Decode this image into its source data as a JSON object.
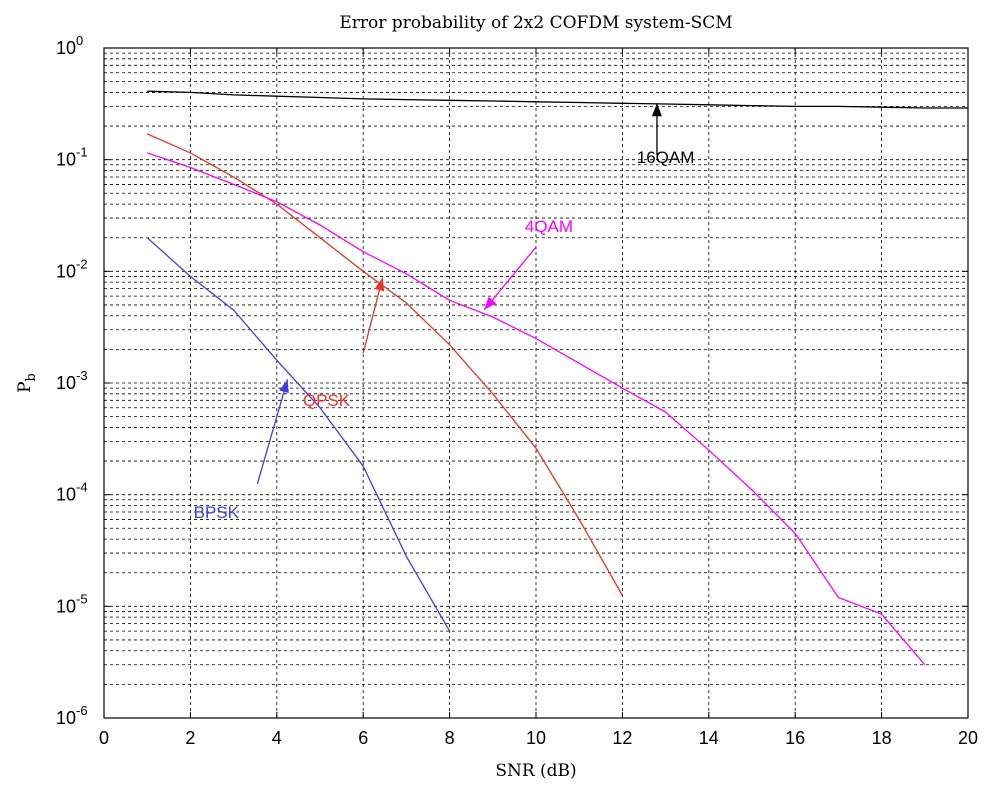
{
  "chart_data": {
    "type": "line",
    "title": "Error probability of 2x2 COFDM system-SCM",
    "xlabel": "SNR (dB)",
    "ylabel": "P",
    "ylabel_sub": "b",
    "xlim": [
      0,
      20
    ],
    "ylim": [
      1e-06,
      1
    ],
    "yscale": "log",
    "grid": true,
    "x_ticks": [
      0,
      2,
      4,
      6,
      8,
      10,
      12,
      14,
      16,
      18,
      20
    ],
    "y_ticks": [
      {
        "base": "10",
        "exp": "0"
      },
      {
        "base": "10",
        "exp": "-1"
      },
      {
        "base": "10",
        "exp": "-2"
      },
      {
        "base": "10",
        "exp": "-3"
      },
      {
        "base": "10",
        "exp": "-4"
      },
      {
        "base": "10",
        "exp": "-5"
      },
      {
        "base": "10",
        "exp": "-6"
      }
    ],
    "series": [
      {
        "name": "16QAM",
        "color": "#000000",
        "x": [
          1,
          2,
          3,
          4,
          5,
          6,
          7,
          8,
          9,
          10,
          11,
          12,
          13,
          14,
          15,
          16,
          17,
          18,
          19,
          20
        ],
        "y": [
          0.41,
          0.4,
          0.38,
          0.37,
          0.36,
          0.35,
          0.345,
          0.34,
          0.335,
          0.33,
          0.325,
          0.32,
          0.315,
          0.31,
          0.305,
          0.3,
          0.3,
          0.295,
          0.29,
          0.29
        ]
      },
      {
        "name": "QPSK",
        "color": "#e8332b",
        "x": [
          1,
          2,
          3,
          4,
          5,
          6,
          7,
          8,
          9,
          10,
          11,
          12
        ],
        "y": [
          0.17,
          0.115,
          0.07,
          0.04,
          0.02,
          0.01,
          0.0052,
          0.0022,
          0.0008,
          0.00026,
          6e-05,
          1.25e-05
        ]
      },
      {
        "name": "4QAM",
        "color": "#ff00ff",
        "x": [
          1,
          2,
          3,
          4,
          5,
          6,
          7,
          8,
          9,
          10,
          11,
          12,
          13,
          14,
          15,
          16,
          17,
          18,
          19
        ],
        "y": [
          0.115,
          0.085,
          0.06,
          0.042,
          0.026,
          0.015,
          0.0095,
          0.0055,
          0.0039,
          0.0025,
          0.0015,
          0.0009,
          0.00055,
          0.00025,
          0.00011,
          4.5e-05,
          1.2e-05,
          8.5e-06,
          3e-06
        ]
      },
      {
        "name": "BPSK",
        "color": "#3f3fe0",
        "x": [
          1,
          2,
          3,
          4,
          5,
          6,
          7,
          8
        ],
        "y": [
          0.02,
          0.009,
          0.0045,
          0.0016,
          0.0006,
          0.00018,
          2.8e-05,
          6e-06
        ]
      }
    ],
    "annotations": [
      {
        "text": "16QAM",
        "color": "#000000"
      },
      {
        "text": "4QAM",
        "color": "#ff00ff"
      },
      {
        "text": "QPSK",
        "color": "#e8332b"
      },
      {
        "text": "BPSK",
        "color": "#3f3fe0"
      }
    ]
  }
}
